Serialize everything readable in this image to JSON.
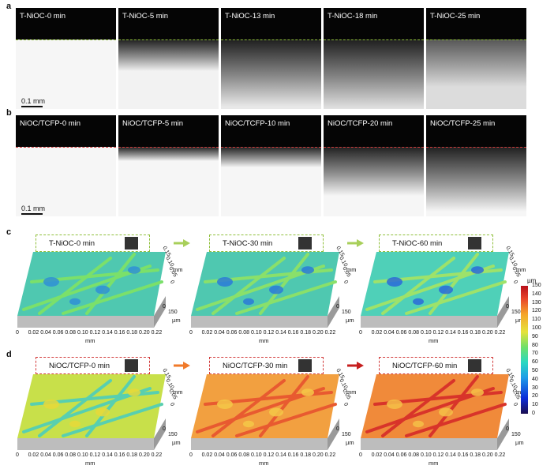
{
  "panel_labels": {
    "a": "a",
    "b": "b",
    "c": "c",
    "d": "d"
  },
  "row_a": {
    "tiles": [
      "T-NiOC-0 min",
      "T-NiOC-5 min",
      "T-NiOC-13 min",
      "T-NiOC-18 min",
      "T-NiOC-25 min"
    ],
    "scale_label": "0.1 mm",
    "dash_color": "#8fbf3a"
  },
  "row_b": {
    "tiles": [
      "NiOC/TCFP-0 min",
      "NiOC/TCFP-5 min",
      "NiOC/TCFP-10 min",
      "NiOC/TCFP-20 min",
      "NiOC/TCFP-25 min"
    ],
    "scale_label": "0.1 mm",
    "dash_color": "#d23a3a"
  },
  "row_c": {
    "titles": [
      "T-NiOC-0 min",
      "T-NiOC-30 min",
      "T-NiOC-60 min"
    ],
    "box_color": "#8fbf3a",
    "arrow_color": "#a8cf5a"
  },
  "row_d": {
    "titles": [
      "NiOC/TCFP-0 min",
      "NiOC/TCFP-30 min",
      "NiOC/TCFP-60 min"
    ],
    "box_color": "#d23a3a",
    "arrow_colors": [
      "#f07a2a",
      "#c61e1e"
    ]
  },
  "axes": {
    "x_ticks": [
      "0",
      "0.02",
      "0.04",
      "0.06",
      "0.08",
      "0.10",
      "0.12",
      "0.14",
      "0.16",
      "0.18",
      "0.20",
      "0.22"
    ],
    "x_unit": "mm",
    "y_ticks": [
      "0.15",
      "0.10",
      "0.05",
      "0"
    ],
    "y_unit": "mm",
    "z_tick": "150",
    "z_zero": "0",
    "z_unit": "µm"
  },
  "colorbar": {
    "unit": "µm",
    "ticks": [
      "150",
      "140",
      "130",
      "120",
      "110",
      "100",
      "90",
      "80",
      "70",
      "60",
      "50",
      "40",
      "30",
      "20",
      "10",
      "0"
    ]
  }
}
